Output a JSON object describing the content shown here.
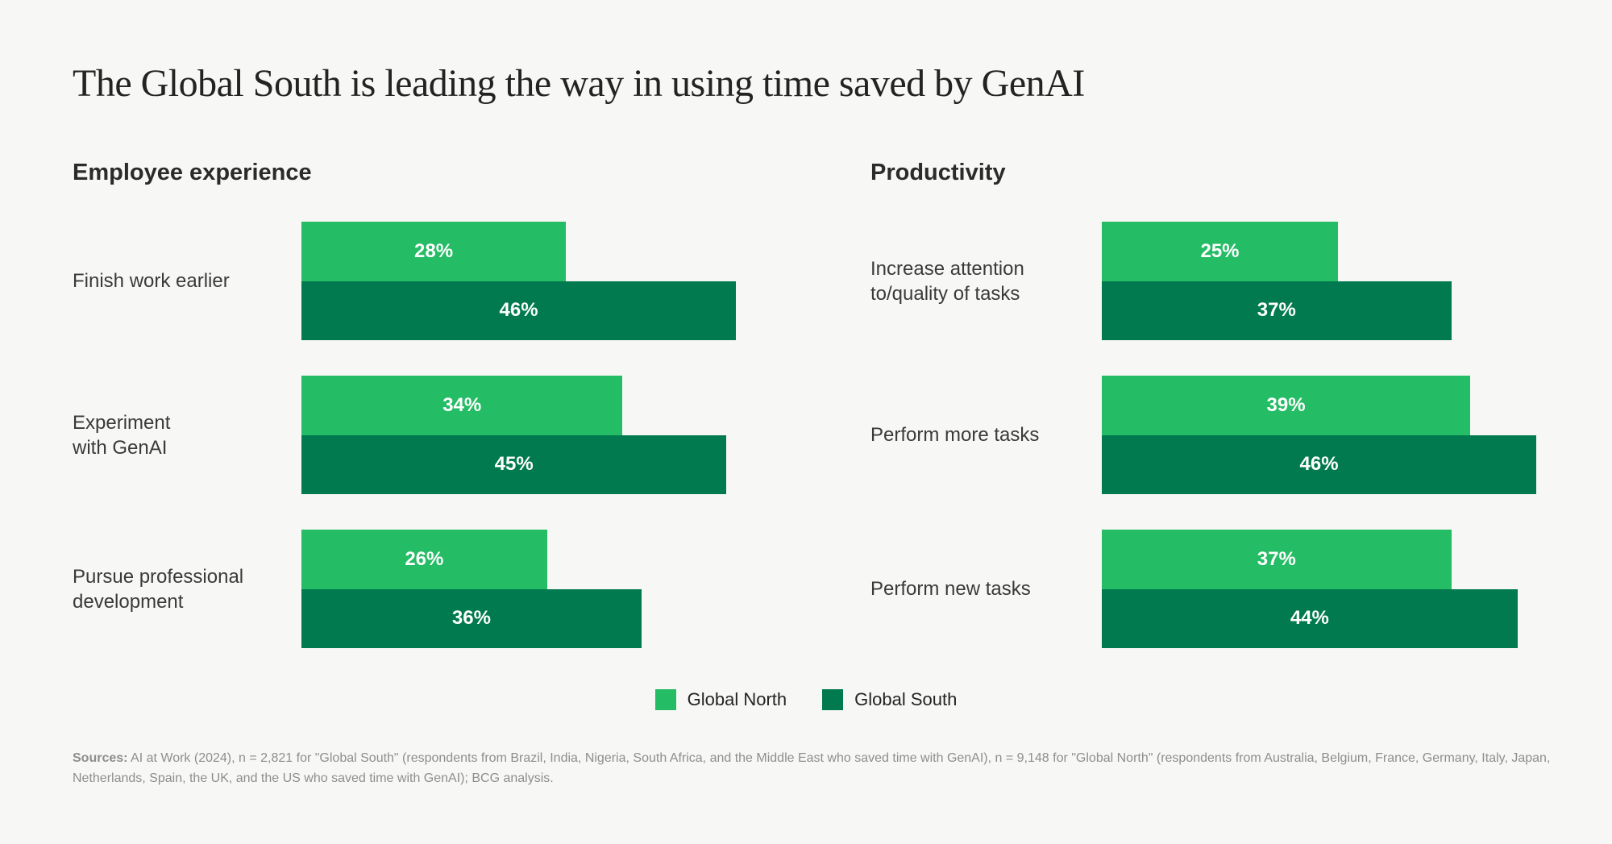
{
  "title": "The Global South is leading the way in using time saved by GenAI",
  "colors": {
    "background": "#F7F7F5",
    "global_north": "#24BC64",
    "global_south": "#007A4E",
    "title_text": "#232323",
    "label_text": "#3A3A3A",
    "muted_text": "#8E8E8E"
  },
  "legend": {
    "items": [
      {
        "label": "Global North",
        "color": "#24BC64"
      },
      {
        "label": "Global South",
        "color": "#007A4E"
      }
    ]
  },
  "sources": {
    "label": "Sources:",
    "text": "AI at Work (2024), n = 2,821 for \"Global South\" (respondents from Brazil, India, Nigeria, South Africa, and the Middle East who saved time with GenAI), n = 9,148 for \"Global North\" (respondents from Australia, Belgium, France, Germany, Italy, Japan,\nNetherlands, Spain, the UK, and the US who saved time with GenAI); BCG analysis."
  },
  "chart_data": [
    {
      "type": "bar",
      "orientation": "horizontal",
      "title": "Employee experience",
      "unit": "%",
      "xlim": [
        0,
        50
      ],
      "grid": false,
      "legend_position": "bottom",
      "categories": [
        "Finish work earlier",
        "Experiment\nwith GenAI",
        "Pursue professional\ndevelopment"
      ],
      "series": [
        {
          "name": "Global North",
          "color": "#24BC64",
          "values": [
            28,
            34,
            26
          ]
        },
        {
          "name": "Global South",
          "color": "#007A4E",
          "values": [
            46,
            45,
            36
          ]
        }
      ]
    },
    {
      "type": "bar",
      "orientation": "horizontal",
      "title": "Productivity",
      "unit": "%",
      "xlim": [
        0,
        50
      ],
      "grid": false,
      "legend_position": "bottom",
      "categories": [
        "Increase attention\nto/quality of tasks",
        "Perform more tasks",
        "Perform new tasks"
      ],
      "series": [
        {
          "name": "Global North",
          "color": "#24BC64",
          "values": [
            25,
            39,
            37
          ]
        },
        {
          "name": "Global South",
          "color": "#007A4E",
          "values": [
            37,
            46,
            44
          ]
        }
      ]
    }
  ]
}
